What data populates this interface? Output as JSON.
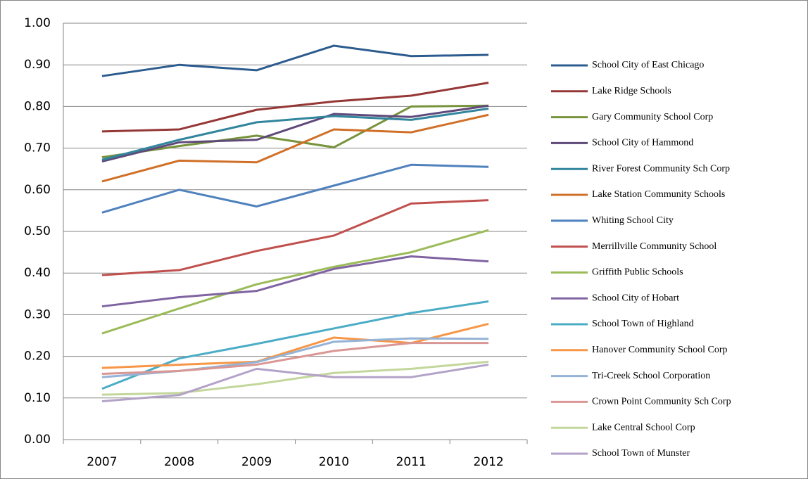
{
  "chart_data": {
    "type": "line",
    "categories": [
      "2007",
      "2008",
      "2009",
      "2010",
      "2011",
      "2012"
    ],
    "ylim": [
      0,
      1
    ],
    "yticks": [
      {
        "value": 0,
        "label": "0.00"
      },
      {
        "value": 0.1,
        "label": "0.10"
      },
      {
        "value": 0.2,
        "label": "0.20"
      },
      {
        "value": 0.3,
        "label": "0.30"
      },
      {
        "value": 0.4,
        "label": "0.40"
      },
      {
        "value": 0.5,
        "label": "0.50"
      },
      {
        "value": 0.6,
        "label": "0.60"
      },
      {
        "value": 0.7,
        "label": "0.70"
      },
      {
        "value": 0.8,
        "label": "0.80"
      },
      {
        "value": 0.9,
        "label": "0.90"
      },
      {
        "value": 1,
        "label": "1.00"
      }
    ],
    "grid": true,
    "legend": "right",
    "series": [
      {
        "name": "School City of East Chicago",
        "color": "#2c5c8f",
        "values": [
          0.873,
          0.9,
          0.887,
          0.946,
          0.921,
          0.924
        ]
      },
      {
        "name": "Lake Ridge Schools",
        "color": "#953735",
        "values": [
          0.74,
          0.745,
          0.792,
          0.812,
          0.826,
          0.857
        ]
      },
      {
        "name": "Gary Community School Corp",
        "color": "#77933c",
        "values": [
          0.678,
          0.705,
          0.73,
          0.702,
          0.8,
          0.802
        ]
      },
      {
        "name": "School City of Hammond",
        "color": "#5f497a",
        "values": [
          0.668,
          0.714,
          0.72,
          0.782,
          0.775,
          0.802
        ]
      },
      {
        "name": "River Forest Community Sch Corp",
        "color": "#31859c",
        "values": [
          0.672,
          0.72,
          0.762,
          0.777,
          0.768,
          0.795
        ]
      },
      {
        "name": "Lake Station Community Schools",
        "color": "#d07028",
        "values": [
          0.62,
          0.67,
          0.666,
          0.745,
          0.738,
          0.78
        ]
      },
      {
        "name": "Whiting School City",
        "color": "#4f81bd",
        "values": [
          0.545,
          0.6,
          0.56,
          0.61,
          0.66,
          0.655
        ]
      },
      {
        "name": "Merrillville Community School",
        "color": "#c0504d",
        "values": [
          0.395,
          0.407,
          0.453,
          0.49,
          0.567,
          0.575
        ]
      },
      {
        "name": "Griffith Public Schools",
        "color": "#9bbb59",
        "values": [
          0.255,
          0.315,
          0.373,
          0.415,
          0.45,
          0.503
        ]
      },
      {
        "name": "School City of Hobart",
        "color": "#8064a2",
        "values": [
          0.32,
          0.342,
          0.357,
          0.41,
          0.44,
          0.428
        ]
      },
      {
        "name": "School Town of Highland",
        "color": "#4bacc6",
        "values": [
          0.122,
          0.195,
          0.23,
          0.267,
          0.304,
          0.332
        ]
      },
      {
        "name": "Hanover Community School Corp",
        "color": "#f79646",
        "values": [
          0.172,
          0.18,
          0.187,
          0.245,
          0.232,
          0.278
        ]
      },
      {
        "name": "Tri-Creek School Corporation",
        "color": "#95b3d7",
        "values": [
          0.15,
          0.165,
          0.186,
          0.235,
          0.243,
          0.242
        ]
      },
      {
        "name": "Crown Point Community Sch Corp",
        "color": "#d99694",
        "values": [
          0.158,
          0.165,
          0.18,
          0.213,
          0.232,
          0.232
        ]
      },
      {
        "name": "Lake Central School Corp",
        "color": "#c3d69b",
        "values": [
          0.108,
          0.112,
          0.133,
          0.16,
          0.17,
          0.187
        ]
      },
      {
        "name": "School Town of Munster",
        "color": "#b3a2c7",
        "values": [
          0.092,
          0.107,
          0.17,
          0.15,
          0.15,
          0.18
        ]
      }
    ]
  }
}
